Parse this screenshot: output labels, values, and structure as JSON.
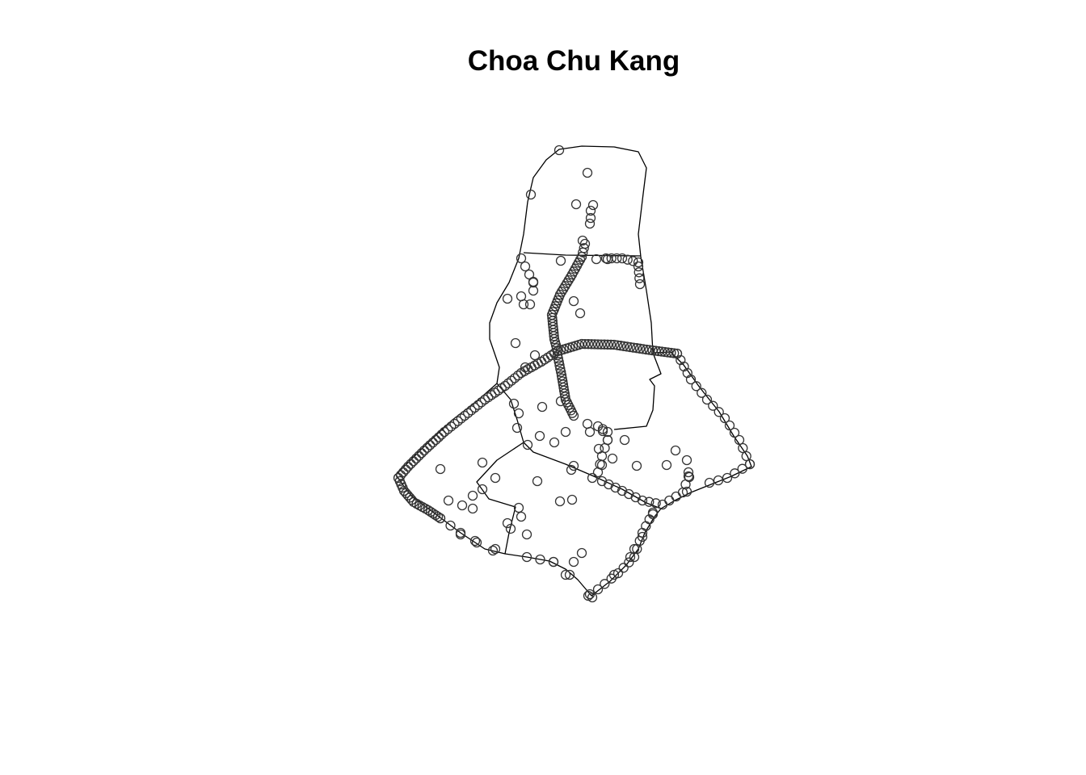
{
  "map": {
    "title": "Choa Chu Kang"
  }
}
